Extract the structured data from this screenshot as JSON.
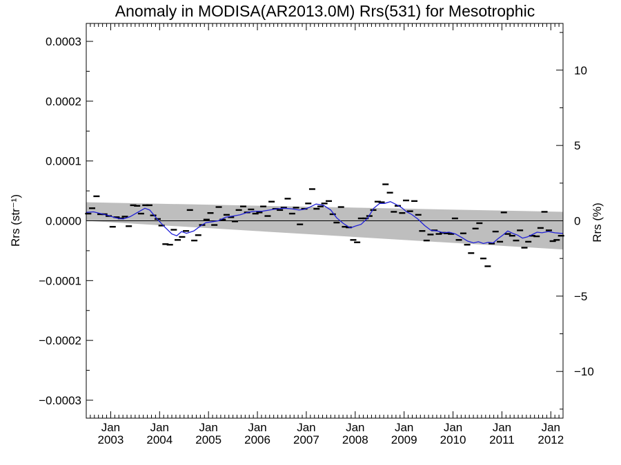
{
  "chart_data": {
    "type": "scatter",
    "title": "Anomaly in MODISA(AR2013.0M) Rrs(531) for Mesotrophic",
    "ylabel_left": "Rrs (str⁻¹)",
    "ylabel_right": "Rrs (%)",
    "xlim": [
      2002.5,
      2012.25
    ],
    "ylim": [
      -0.00033,
      0.00033
    ],
    "ylim_right_percent": [
      -13.1,
      13.1
    ],
    "x_ticks": [
      {
        "value": 2003.0,
        "label": "Jan\n2003"
      },
      {
        "value": 2004.0,
        "label": "Jan\n2004"
      },
      {
        "value": 2005.0,
        "label": "Jan\n2005"
      },
      {
        "value": 2006.0,
        "label": "Jan\n2006"
      },
      {
        "value": 2007.0,
        "label": "Jan\n2007"
      },
      {
        "value": 2008.0,
        "label": "Jan\n2008"
      },
      {
        "value": 2009.0,
        "label": "Jan\n2009"
      },
      {
        "value": 2010.0,
        "label": "Jan\n2010"
      },
      {
        "value": 2011.0,
        "label": "Jan\n2011"
      },
      {
        "value": 2012.0,
        "label": "Jan\n2012"
      }
    ],
    "y_ticks_left": [
      {
        "value": 0.0003,
        "label": "0.0003"
      },
      {
        "value": 0.0002,
        "label": "0.0002"
      },
      {
        "value": 0.0001,
        "label": "0.0001"
      },
      {
        "value": 0.0,
        "label": "0.0000"
      },
      {
        "value": -0.0001,
        "label": "−0.0001"
      },
      {
        "value": -0.0002,
        "label": "−0.0002"
      },
      {
        "value": -0.0003,
        "label": "−0.0003"
      }
    ],
    "y_ticks_right": [
      {
        "value": 10,
        "label": "10"
      },
      {
        "value": 5,
        "label": "5"
      },
      {
        "value": 0,
        "label": "0"
      },
      {
        "value": -5,
        "label": "−5"
      },
      {
        "value": -10,
        "label": "−10"
      }
    ],
    "zero_line": 0.0,
    "uncertainty_band": {
      "color": "#bebebe",
      "x": [
        2002.5,
        2012.25
      ],
      "upper": [
        3.1e-05,
        1.5e-05
      ],
      "lower": [
        0.0,
        -4.8e-05
      ]
    },
    "series": [
      {
        "kind": "monthly_points",
        "marker": "dash",
        "color": "#000000",
        "points": [
          [
            2002.54,
            1.2e-05
          ],
          [
            2002.62,
            2.1e-05
          ],
          [
            2002.71,
            4.1e-05
          ],
          [
            2002.79,
            1.1e-05
          ],
          [
            2002.87,
            1.1e-05
          ],
          [
            2002.96,
            8e-06
          ],
          [
            2003.04,
            -1e-05
          ],
          [
            2003.12,
            6e-06
          ],
          [
            2003.21,
            4e-06
          ],
          [
            2003.29,
            7e-06
          ],
          [
            2003.37,
            -9e-06
          ],
          [
            2003.46,
            2.6e-05
          ],
          [
            2003.54,
            2.5e-05
          ],
          [
            2003.62,
            1.2e-05
          ],
          [
            2003.71,
            2.6e-05
          ],
          [
            2003.79,
            2.6e-05
          ],
          [
            2003.87,
            9e-06
          ],
          [
            2003.96,
            3e-06
          ],
          [
            2004.04,
            -8e-06
          ],
          [
            2004.12,
            -3.9e-05
          ],
          [
            2004.21,
            -4e-05
          ],
          [
            2004.29,
            -1.5e-05
          ],
          [
            2004.37,
            -3.2e-05
          ],
          [
            2004.46,
            -2.7e-05
          ],
          [
            2004.54,
            -1.7e-05
          ],
          [
            2004.62,
            1.8e-05
          ],
          [
            2004.71,
            -3.3e-05
          ],
          [
            2004.79,
            -2.4e-05
          ],
          [
            2004.87,
            -7e-06
          ],
          [
            2004.96,
            2e-06
          ],
          [
            2005.04,
            1.3e-05
          ],
          [
            2005.12,
            -7e-06
          ],
          [
            2005.21,
            2.3e-05
          ],
          [
            2005.29,
            2e-06
          ],
          [
            2005.37,
            1e-05
          ],
          [
            2005.46,
            6e-06
          ],
          [
            2005.54,
            -1e-06
          ],
          [
            2005.62,
            1.8e-05
          ],
          [
            2005.71,
            2.4e-05
          ],
          [
            2005.79,
            1.4e-05
          ],
          [
            2005.87,
            1.9e-05
          ],
          [
            2005.96,
            1.2e-05
          ],
          [
            2006.04,
            1.4e-05
          ],
          [
            2006.12,
            2.4e-05
          ],
          [
            2006.21,
            8e-06
          ],
          [
            2006.29,
            3.2e-05
          ],
          [
            2006.37,
            2e-05
          ],
          [
            2006.46,
            1.8e-05
          ],
          [
            2006.54,
            2.2e-05
          ],
          [
            2006.62,
            3.7e-05
          ],
          [
            2006.71,
            1.2e-05
          ],
          [
            2006.79,
            2.2e-05
          ],
          [
            2006.87,
            -6e-06
          ],
          [
            2006.96,
            2e-05
          ],
          [
            2007.04,
            2.9e-05
          ],
          [
            2007.12,
            5.3e-05
          ],
          [
            2007.21,
            2e-05
          ],
          [
            2007.29,
            2.4e-05
          ],
          [
            2007.37,
            2.9e-05
          ],
          [
            2007.46,
            3.3e-05
          ],
          [
            2007.54,
            1.1e-05
          ],
          [
            2007.62,
            -3e-06
          ],
          [
            2007.71,
            2.3e-05
          ],
          [
            2007.79,
            -1e-05
          ],
          [
            2007.87,
            -1.1e-05
          ],
          [
            2007.96,
            -3.2e-05
          ],
          [
            2008.04,
            -3.6e-05
          ],
          [
            2008.12,
            4e-06
          ],
          [
            2008.21,
            4e-06
          ],
          [
            2008.29,
            8e-06
          ],
          [
            2008.37,
            1.8e-05
          ],
          [
            2008.46,
            3.2e-05
          ],
          [
            2008.54,
            3.1e-05
          ],
          [
            2008.62,
            6.1e-05
          ],
          [
            2008.71,
            4.7e-05
          ],
          [
            2008.79,
            1.5e-05
          ],
          [
            2008.87,
            2.5e-05
          ],
          [
            2008.96,
            1.3e-05
          ],
          [
            2009.04,
            3.4e-05
          ],
          [
            2009.12,
            1.6e-05
          ],
          [
            2009.21,
            3.3e-05
          ],
          [
            2009.29,
            1e-05
          ],
          [
            2009.37,
            -1.7e-05
          ],
          [
            2009.46,
            -3.3e-05
          ],
          [
            2009.54,
            -2.3e-05
          ],
          [
            2009.62,
            -1.6e-05
          ],
          [
            2009.71,
            -2.2e-05
          ],
          [
            2009.79,
            -2e-05
          ],
          [
            2009.87,
            -2.1e-05
          ],
          [
            2009.96,
            -2.2e-05
          ],
          [
            2010.04,
            4e-06
          ],
          [
            2010.12,
            -3.2e-05
          ],
          [
            2010.21,
            -2.1e-05
          ],
          [
            2010.29,
            -4e-05
          ],
          [
            2010.37,
            -5.4e-05
          ],
          [
            2010.46,
            -1.3e-05
          ],
          [
            2010.54,
            -4e-06
          ],
          [
            2010.62,
            -6.3e-05
          ],
          [
            2010.71,
            -7.6e-05
          ],
          [
            2010.79,
            -3.8e-05
          ],
          [
            2010.87,
            -1.8e-05
          ],
          [
            2010.96,
            -3.5e-05
          ],
          [
            2011.04,
            1.4e-05
          ],
          [
            2011.12,
            -2.2e-05
          ],
          [
            2011.21,
            -2.5e-05
          ],
          [
            2011.29,
            -3.3e-05
          ],
          [
            2011.37,
            -1.6e-05
          ],
          [
            2011.46,
            -4.5e-05
          ],
          [
            2011.54,
            -3.5e-05
          ],
          [
            2011.62,
            -2.5e-05
          ],
          [
            2011.71,
            -2.6e-05
          ],
          [
            2011.79,
            -1.2e-05
          ],
          [
            2011.87,
            1.5e-05
          ],
          [
            2011.96,
            -1.6e-05
          ],
          [
            2012.04,
            -3.4e-05
          ],
          [
            2012.12,
            -3.2e-05
          ],
          [
            2012.21,
            -2.5e-05
          ]
        ]
      },
      {
        "kind": "running_mean",
        "color": "#1f1fd8",
        "points": [
          [
            2002.5,
            1.4e-05
          ],
          [
            2002.65,
            1.5e-05
          ],
          [
            2002.8,
            1.2e-05
          ],
          [
            2002.95,
            9e-06
          ],
          [
            2003.1,
            5e-06
          ],
          [
            2003.25,
            3e-06
          ],
          [
            2003.4,
            7e-06
          ],
          [
            2003.55,
            1.4e-05
          ],
          [
            2003.7,
            2.1e-05
          ],
          [
            2003.8,
            1.8e-05
          ],
          [
            2003.95,
            3e-06
          ],
          [
            2004.1,
            -1e-05
          ],
          [
            2004.25,
            -2.2e-05
          ],
          [
            2004.35,
            -2.5e-05
          ],
          [
            2004.45,
            -1.8e-05
          ],
          [
            2004.55,
            -2.1e-05
          ],
          [
            2004.7,
            -1.7e-05
          ],
          [
            2004.85,
            -8e-06
          ],
          [
            2004.95,
            -3e-06
          ],
          [
            2005.05,
            -2e-06
          ],
          [
            2005.2,
            0.0
          ],
          [
            2005.35,
            6e-06
          ],
          [
            2005.5,
            8e-06
          ],
          [
            2005.65,
            1e-05
          ],
          [
            2005.8,
            1.4e-05
          ],
          [
            2005.95,
            1.6e-05
          ],
          [
            2006.1,
            1.6e-05
          ],
          [
            2006.25,
            1.8e-05
          ],
          [
            2006.4,
            2e-05
          ],
          [
            2006.55,
            2.1e-05
          ],
          [
            2006.7,
            2e-05
          ],
          [
            2006.85,
            1.8e-05
          ],
          [
            2006.95,
            1.9e-05
          ],
          [
            2007.05,
            2.2e-05
          ],
          [
            2007.2,
            2.8e-05
          ],
          [
            2007.35,
            2.6e-05
          ],
          [
            2007.5,
            1.8e-05
          ],
          [
            2007.62,
            5e-06
          ],
          [
            2007.75,
            -4e-06
          ],
          [
            2007.9,
            -1.2e-05
          ],
          [
            2008.0,
            -9e-06
          ],
          [
            2008.12,
            -6e-06
          ],
          [
            2008.25,
            4e-06
          ],
          [
            2008.38,
            2.1e-05
          ],
          [
            2008.5,
            2.9e-05
          ],
          [
            2008.6,
            2.9e-05
          ],
          [
            2008.72,
            3.2e-05
          ],
          [
            2008.82,
            2.8e-05
          ],
          [
            2008.95,
            2.2e-05
          ],
          [
            2009.05,
            1.5e-05
          ],
          [
            2009.15,
            1.1e-05
          ],
          [
            2009.28,
            3e-06
          ],
          [
            2009.42,
            -8e-06
          ],
          [
            2009.55,
            -1.6e-05
          ],
          [
            2009.68,
            -1.7e-05
          ],
          [
            2009.8,
            -2e-05
          ],
          [
            2009.92,
            -1.9e-05
          ],
          [
            2010.05,
            -2.2e-05
          ],
          [
            2010.18,
            -2.8e-05
          ],
          [
            2010.3,
            -3.4e-05
          ],
          [
            2010.42,
            -3.7e-05
          ],
          [
            2010.52,
            -3.5e-05
          ],
          [
            2010.62,
            -3.8e-05
          ],
          [
            2010.72,
            -3.6e-05
          ],
          [
            2010.82,
            -3.7e-05
          ],
          [
            2010.92,
            -3e-05
          ],
          [
            2011.02,
            -2.4e-05
          ],
          [
            2011.12,
            -1.7e-05
          ],
          [
            2011.22,
            -2.1e-05
          ],
          [
            2011.32,
            -2.4e-05
          ],
          [
            2011.42,
            -2.9e-05
          ],
          [
            2011.52,
            -2.7e-05
          ],
          [
            2011.62,
            -2.3e-05
          ],
          [
            2011.72,
            -1.9e-05
          ],
          [
            2011.82,
            -2e-05
          ],
          [
            2011.95,
            -1.8e-05
          ],
          [
            2012.08,
            -2e-05
          ],
          [
            2012.2,
            -2.1e-05
          ],
          [
            2012.25,
            -2.1e-05
          ]
        ]
      }
    ]
  }
}
